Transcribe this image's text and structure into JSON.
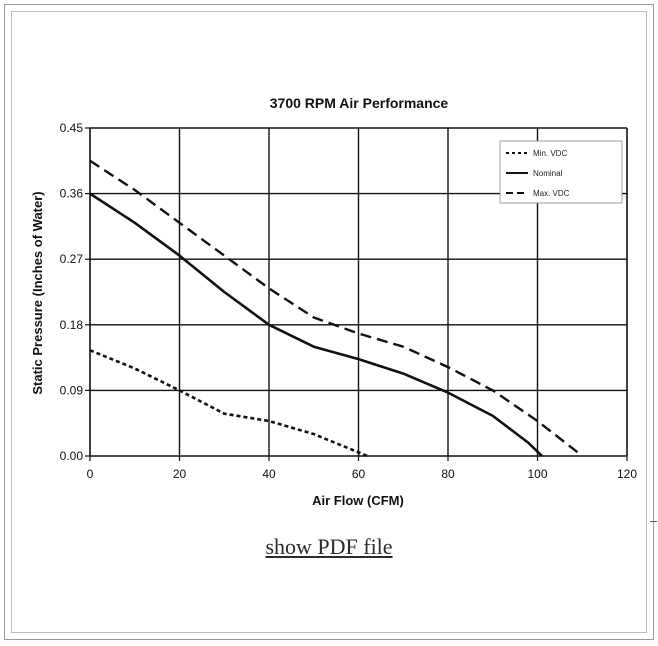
{
  "link": {
    "label": "show PDF file"
  },
  "chart_data": {
    "type": "line",
    "title": "3700 RPM Air Performance",
    "xlabel": "Air Flow (CFM)",
    "ylabel": "Static Pressure (Inches of Water)",
    "xlim": [
      0,
      120
    ],
    "ylim": [
      0,
      0.45
    ],
    "x_ticks": [
      "0",
      "20",
      "40",
      "60",
      "80",
      "100",
      "120"
    ],
    "y_ticks": [
      "0.00",
      "0.09",
      "0.18",
      "0.27",
      "0.36",
      "0.45"
    ],
    "x_tick_values": [
      0,
      20,
      40,
      60,
      80,
      100,
      120
    ],
    "y_tick_values": [
      0,
      0.09,
      0.18,
      0.27,
      0.36,
      0.45
    ],
    "grid": true,
    "legend_position": "top-right",
    "series": [
      {
        "name": "Min. VDC",
        "style": "dotted",
        "x": [
          0,
          10,
          20,
          30,
          40,
          50,
          58,
          62
        ],
        "y": [
          0.145,
          0.12,
          0.09,
          0.058,
          0.048,
          0.03,
          0.01,
          0.0
        ]
      },
      {
        "name": "Nominal",
        "style": "solid",
        "x": [
          0,
          10,
          20,
          30,
          40,
          50,
          60,
          70,
          80,
          90,
          98,
          101
        ],
        "y": [
          0.36,
          0.32,
          0.275,
          0.225,
          0.18,
          0.15,
          0.133,
          0.113,
          0.087,
          0.055,
          0.018,
          0.0
        ]
      },
      {
        "name": "Max. VDC",
        "style": "dashed",
        "x": [
          0,
          10,
          20,
          30,
          40,
          50,
          60,
          70,
          80,
          90,
          100,
          110
        ],
        "y": [
          0.405,
          0.365,
          0.32,
          0.275,
          0.23,
          0.19,
          0.168,
          0.15,
          0.122,
          0.09,
          0.048,
          0.0
        ]
      }
    ]
  }
}
